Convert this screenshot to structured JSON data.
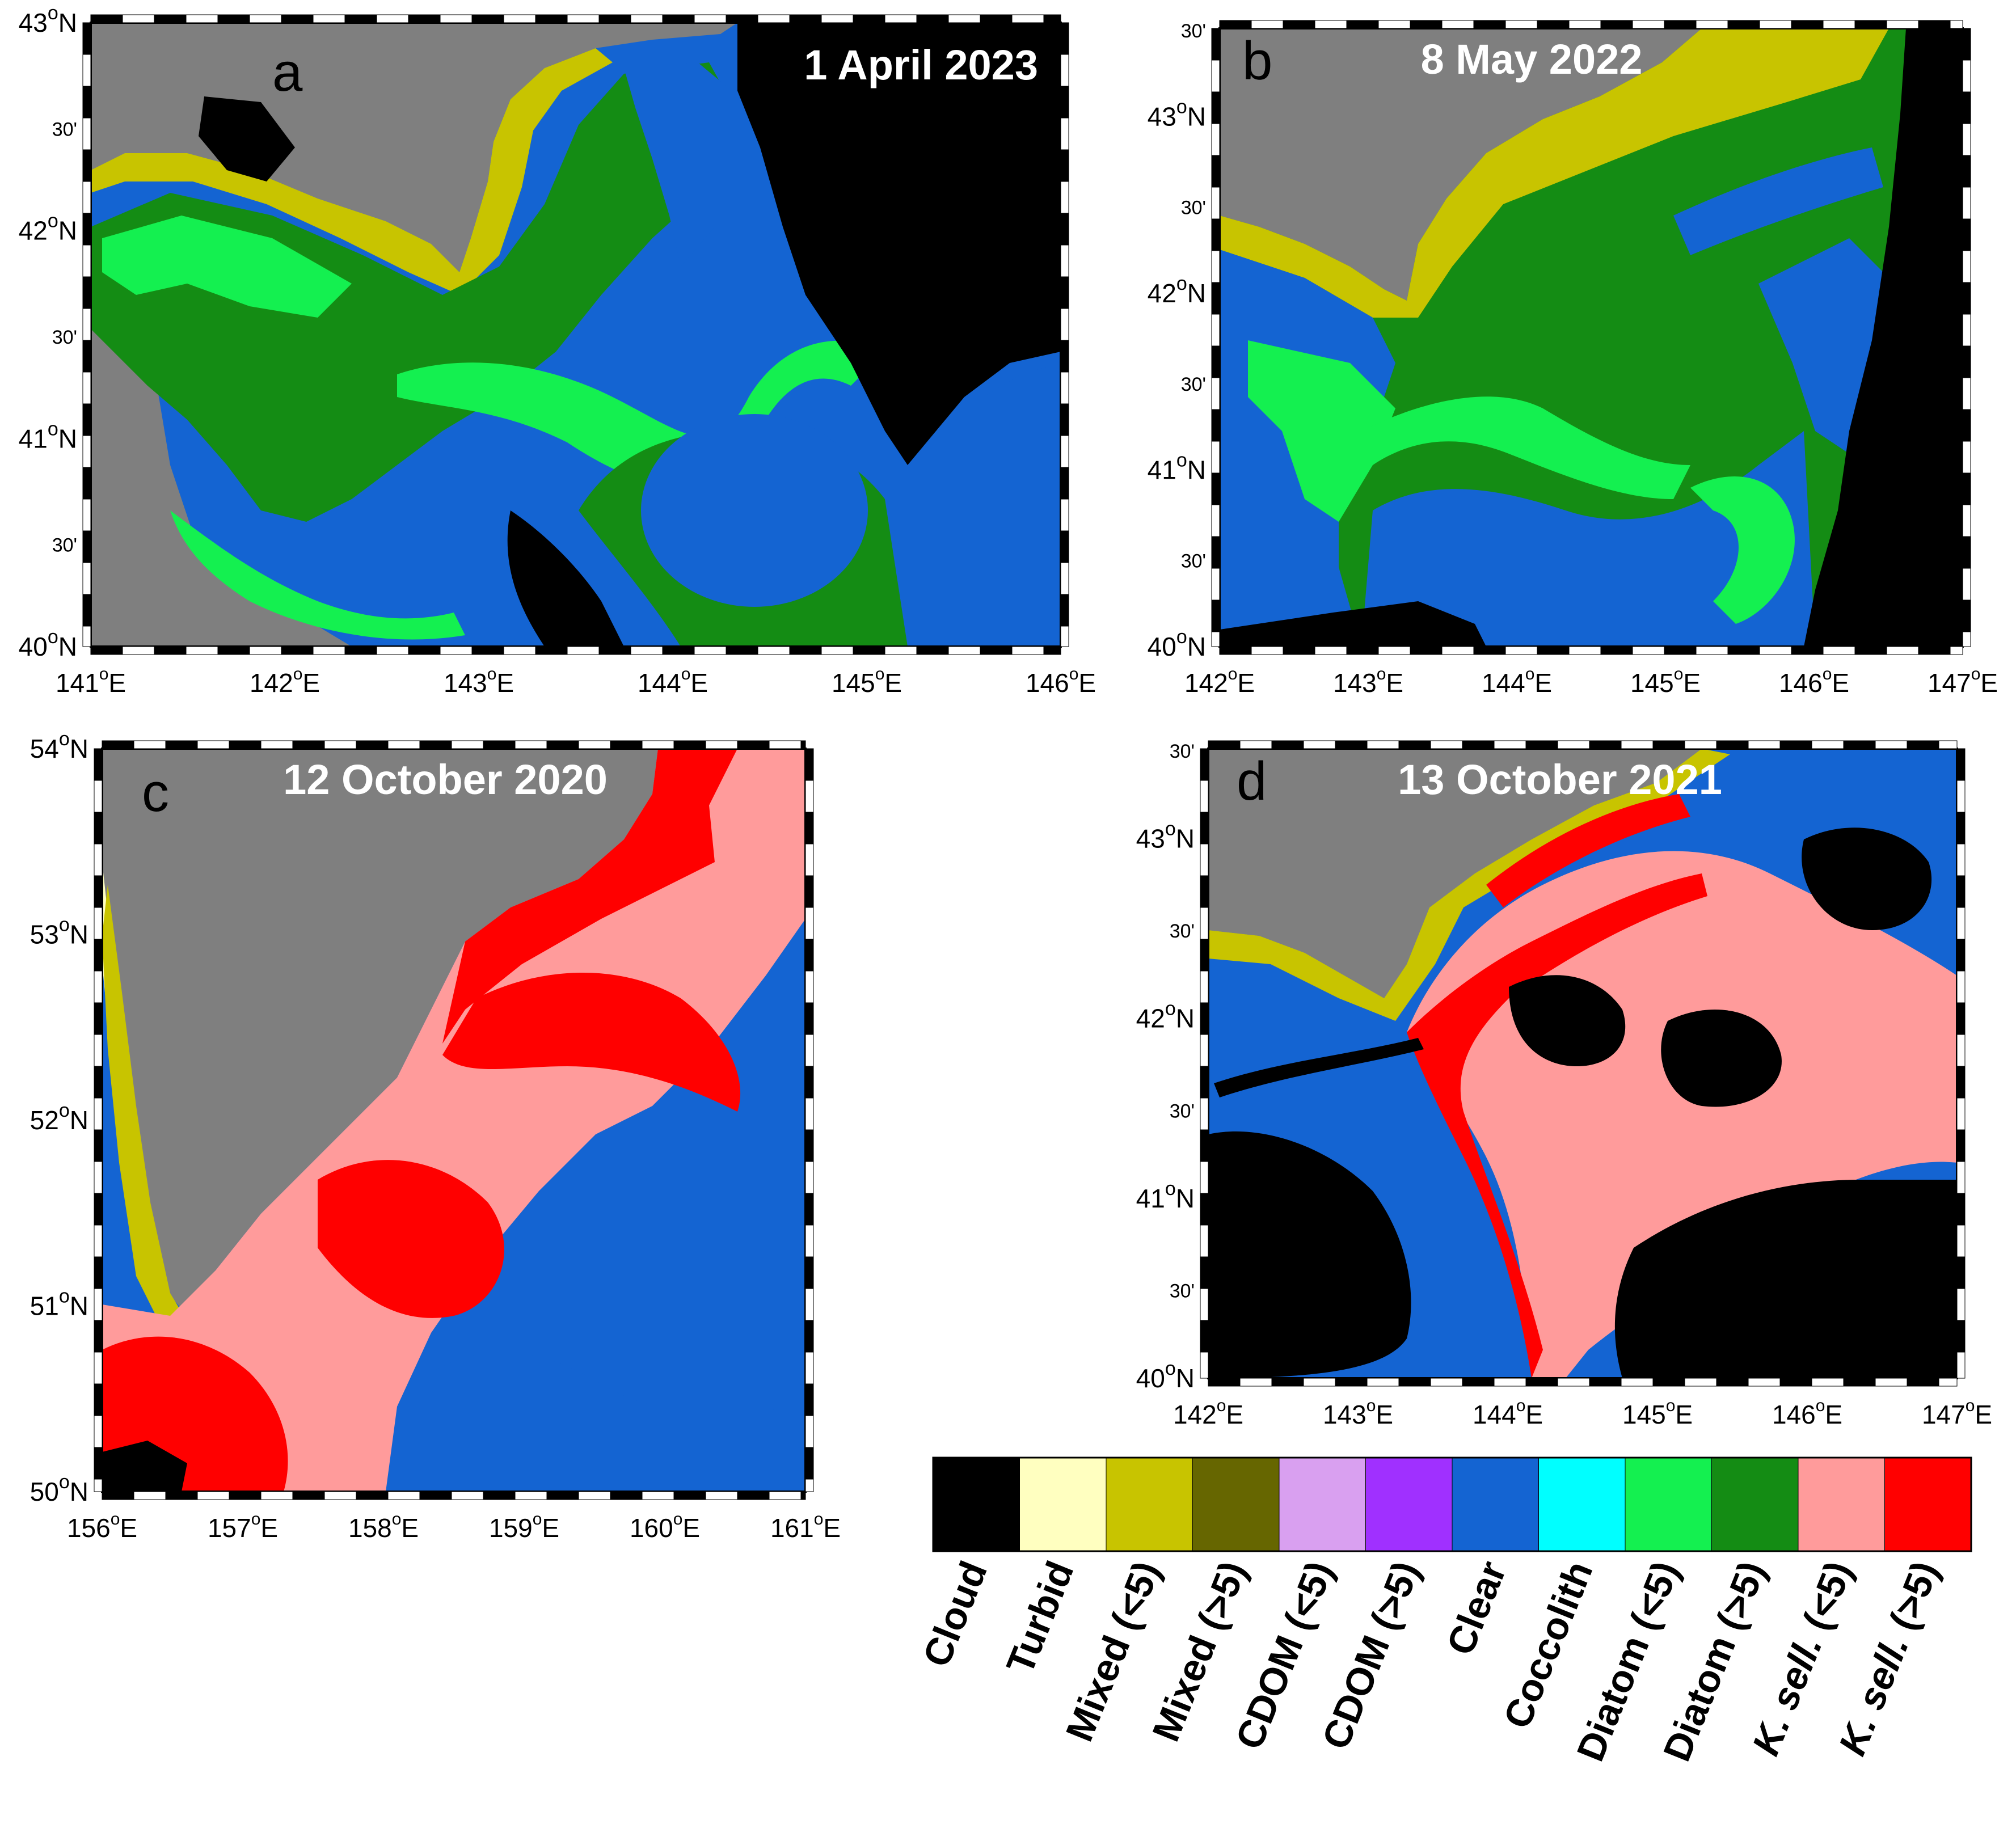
{
  "panels": [
    {
      "letter": "a",
      "date": "1 April 2023",
      "lon_labels": [
        {
          "deg": "141",
          "hemi": "E"
        },
        {
          "deg": "142",
          "hemi": "E"
        },
        {
          "deg": "143",
          "hemi": "E"
        },
        {
          "deg": "144",
          "hemi": "E"
        },
        {
          "deg": "145",
          "hemi": "E"
        },
        {
          "deg": "146",
          "hemi": "E"
        }
      ],
      "lat_labels": [
        {
          "deg": "43",
          "hemi": "N"
        },
        {
          "deg": "",
          "hemi": "30'"
        },
        {
          "deg": "42",
          "hemi": "N"
        },
        {
          "deg": "",
          "hemi": "30'"
        },
        {
          "deg": "41",
          "hemi": "N"
        },
        {
          "deg": "",
          "hemi": "30'"
        },
        {
          "deg": "40",
          "hemi": "N"
        }
      ]
    },
    {
      "letter": "b",
      "date": "8 May 2022",
      "lon_labels": [
        {
          "deg": "142",
          "hemi": "E"
        },
        {
          "deg": "143",
          "hemi": "E"
        },
        {
          "deg": "144",
          "hemi": "E"
        },
        {
          "deg": "145",
          "hemi": "E"
        },
        {
          "deg": "146",
          "hemi": "E"
        },
        {
          "deg": "147",
          "hemi": "E"
        }
      ],
      "lat_labels": [
        {
          "deg": "",
          "hemi": "30'"
        },
        {
          "deg": "43",
          "hemi": "N"
        },
        {
          "deg": "",
          "hemi": "30'"
        },
        {
          "deg": "42",
          "hemi": "N"
        },
        {
          "deg": "",
          "hemi": "30'"
        },
        {
          "deg": "41",
          "hemi": "N"
        },
        {
          "deg": "",
          "hemi": "30'"
        },
        {
          "deg": "40",
          "hemi": "N"
        }
      ]
    },
    {
      "letter": "c",
      "date": "12 October 2020",
      "lon_labels": [
        {
          "deg": "156",
          "hemi": "E"
        },
        {
          "deg": "157",
          "hemi": "E"
        },
        {
          "deg": "158",
          "hemi": "E"
        },
        {
          "deg": "159",
          "hemi": "E"
        },
        {
          "deg": "160",
          "hemi": "E"
        },
        {
          "deg": "161",
          "hemi": "E"
        }
      ],
      "lat_labels": [
        {
          "deg": "54",
          "hemi": "N"
        },
        {
          "deg": "53",
          "hemi": "N"
        },
        {
          "deg": "52",
          "hemi": "N"
        },
        {
          "deg": "51",
          "hemi": "N"
        },
        {
          "deg": "50",
          "hemi": "N"
        }
      ]
    },
    {
      "letter": "d",
      "date": "13 October 2021",
      "lon_labels": [
        {
          "deg": "142",
          "hemi": "E"
        },
        {
          "deg": "143",
          "hemi": "E"
        },
        {
          "deg": "144",
          "hemi": "E"
        },
        {
          "deg": "145",
          "hemi": "E"
        },
        {
          "deg": "146",
          "hemi": "E"
        },
        {
          "deg": "147",
          "hemi": "E"
        }
      ],
      "lat_labels": [
        {
          "deg": "",
          "hemi": "30'"
        },
        {
          "deg": "43",
          "hemi": "N"
        },
        {
          "deg": "",
          "hemi": "30'"
        },
        {
          "deg": "42",
          "hemi": "N"
        },
        {
          "deg": "",
          "hemi": "30'"
        },
        {
          "deg": "41",
          "hemi": "N"
        },
        {
          "deg": "",
          "hemi": "30'"
        },
        {
          "deg": "40",
          "hemi": "N"
        }
      ]
    }
  ],
  "colors": {
    "land": "#7f7f7f",
    "cloud": "#000000",
    "turbid": "#ffffc0",
    "mixed_lo": "#c8c400",
    "mixed_hi": "#666600",
    "cdom_lo": "#d9a0f0",
    "cdom_hi": "#a030ff",
    "clear": "#1464d2",
    "coccolith": "#00ffff",
    "diatom_lo": "#14f050",
    "diatom_hi": "#148c14",
    "ksell_lo": "#ff9b9b",
    "ksell_hi": "#ff0000"
  },
  "legend": {
    "items": [
      {
        "label": "Cloud",
        "italic": "",
        "color": "#000000"
      },
      {
        "label": "Turbid",
        "italic": "",
        "color": "#ffffc0"
      },
      {
        "label": "Mixed (<5)",
        "italic": "",
        "color": "#c8c400"
      },
      {
        "label": "Mixed (>5)",
        "italic": "",
        "color": "#666600"
      },
      {
        "label": "CDOM (<5)",
        "italic": "",
        "color": "#d9a0f0"
      },
      {
        "label": "CDOM (>5)",
        "italic": "",
        "color": "#a030ff"
      },
      {
        "label": "Clear",
        "italic": "",
        "color": "#1464d2"
      },
      {
        "label": "Coccolith",
        "italic": "",
        "color": "#00ffff"
      },
      {
        "label": "Diatom (<5)",
        "italic": "",
        "color": "#14f050"
      },
      {
        "label": "Diatom (>5)",
        "italic": "",
        "color": "#148c14"
      },
      {
        "label": " (<5)",
        "italic": "K. sell.",
        "color": "#ff9b9b"
      },
      {
        "label": " (>5)",
        "italic": "K. sell.",
        "color": "#ff0000"
      }
    ]
  }
}
